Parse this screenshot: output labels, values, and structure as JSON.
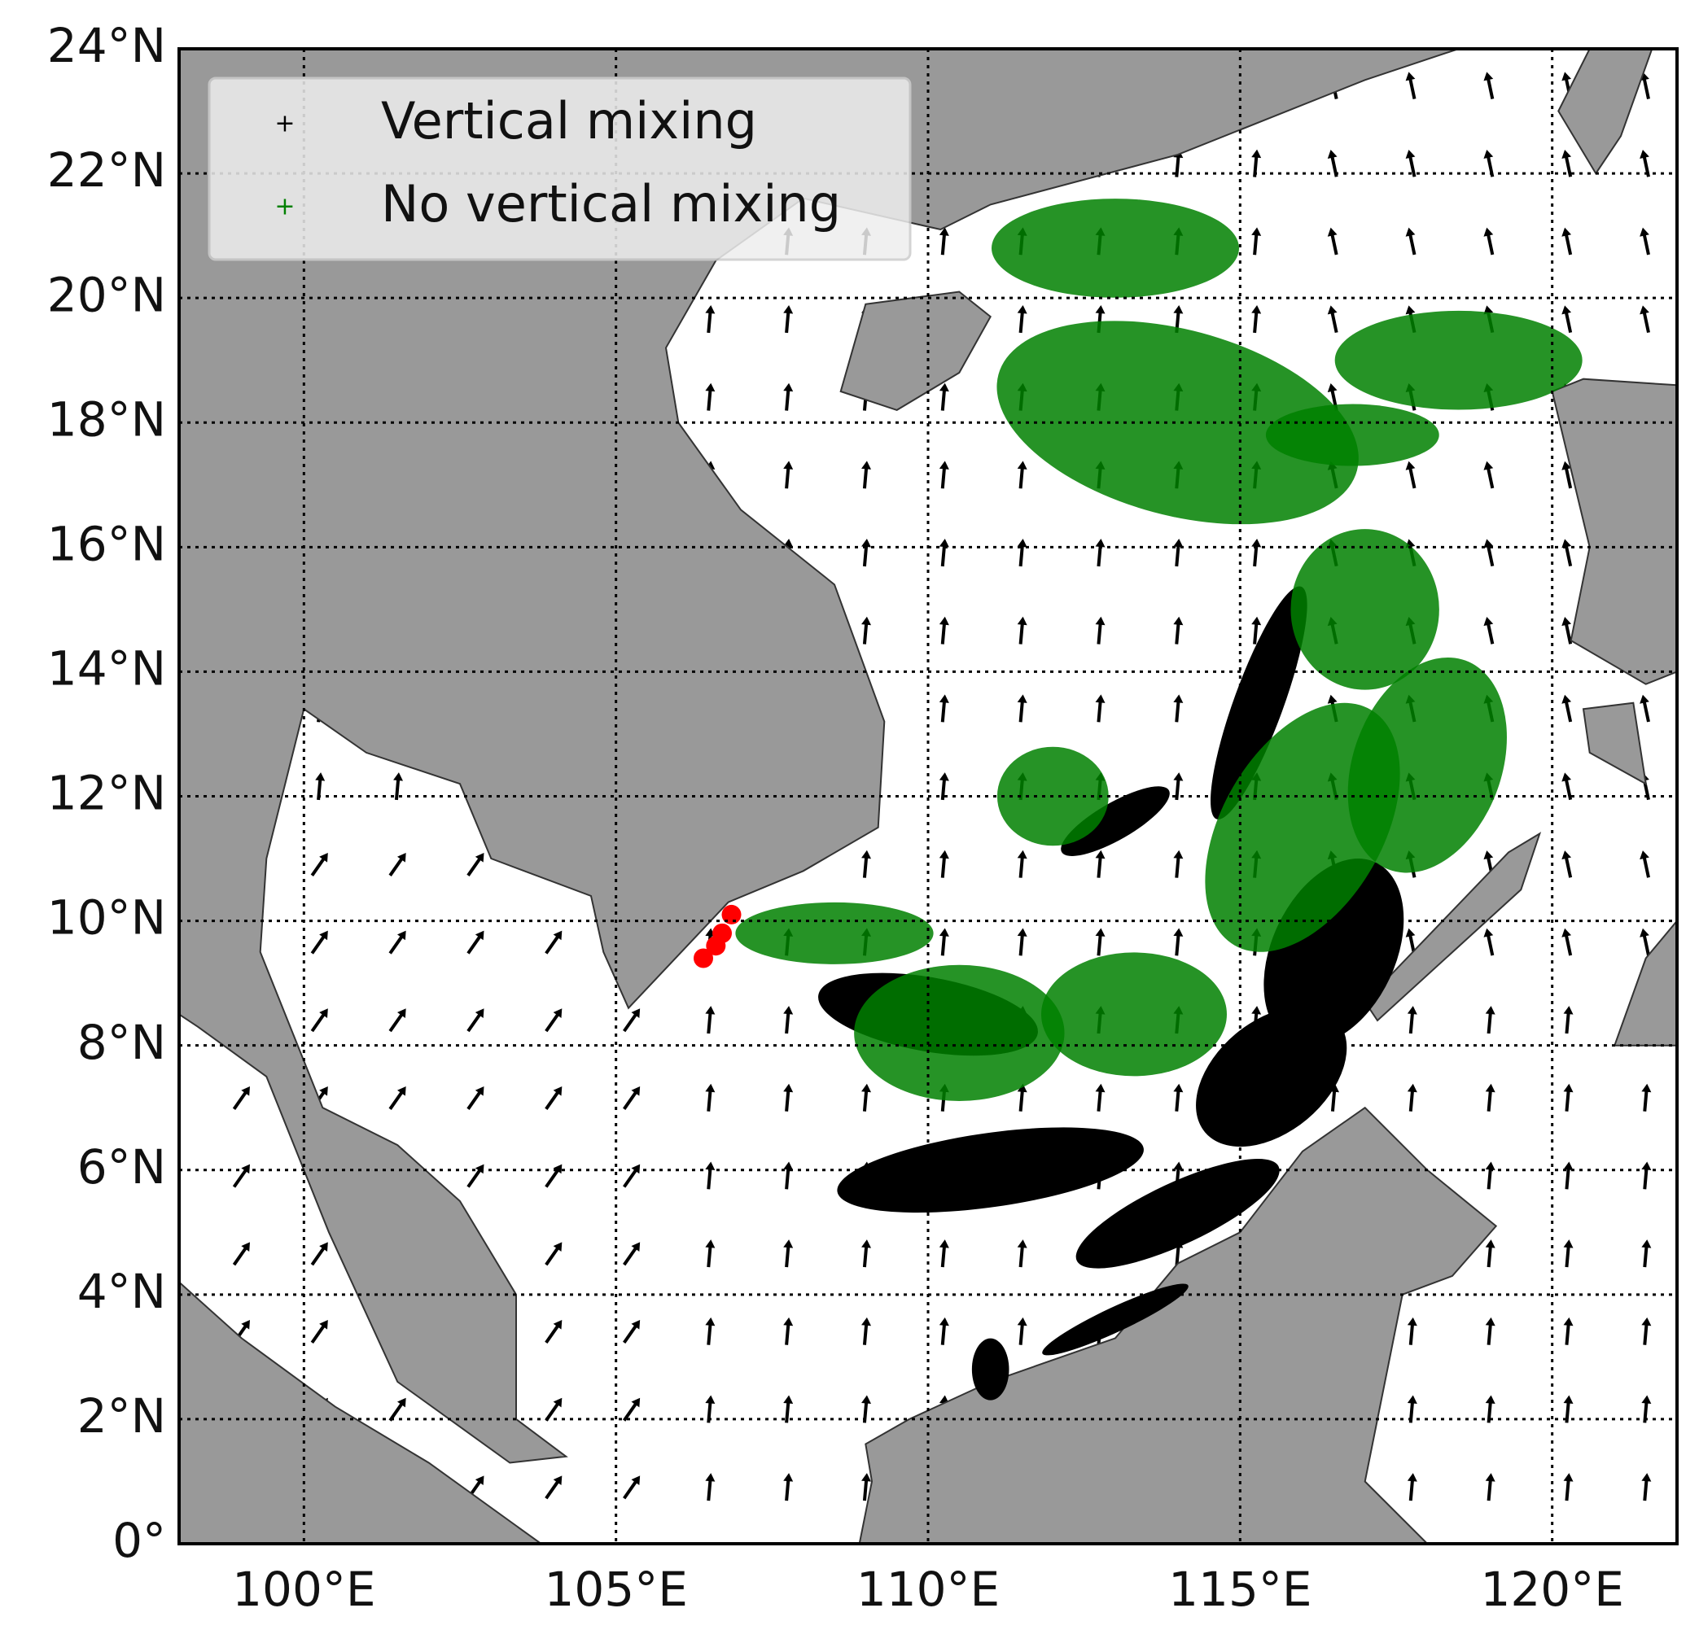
{
  "chart_data": {
    "type": "map",
    "xlim": [
      98,
      122
    ],
    "ylim": [
      0,
      24
    ],
    "xticks": [
      {
        "value": 100,
        "label": "100°E"
      },
      {
        "value": 105,
        "label": "105°E"
      },
      {
        "value": 110,
        "label": "110°E"
      },
      {
        "value": 115,
        "label": "115°E"
      },
      {
        "value": 120,
        "label": "120°E"
      }
    ],
    "yticks": [
      {
        "value": 0,
        "label": "0°"
      },
      {
        "value": 2,
        "label": "2°N"
      },
      {
        "value": 4,
        "label": "4°N"
      },
      {
        "value": 6,
        "label": "6°N"
      },
      {
        "value": 8,
        "label": "8°N"
      },
      {
        "value": 10,
        "label": "10°N"
      },
      {
        "value": 12,
        "label": "12°N"
      },
      {
        "value": 14,
        "label": "14°N"
      },
      {
        "value": 16,
        "label": "16°N"
      },
      {
        "value": 18,
        "label": "18°N"
      },
      {
        "value": 20,
        "label": "20°N"
      },
      {
        "value": 22,
        "label": "22°N"
      },
      {
        "value": 24,
        "label": "24°N"
      }
    ],
    "grid": true,
    "legend": "upper left",
    "series": [
      {
        "name": "Vertical mixing",
        "color": "#000000"
      },
      {
        "name": "No vertical mixing",
        "color": "#008000"
      }
    ],
    "release_color": "#ff0000",
    "land_color": "#999999"
  }
}
